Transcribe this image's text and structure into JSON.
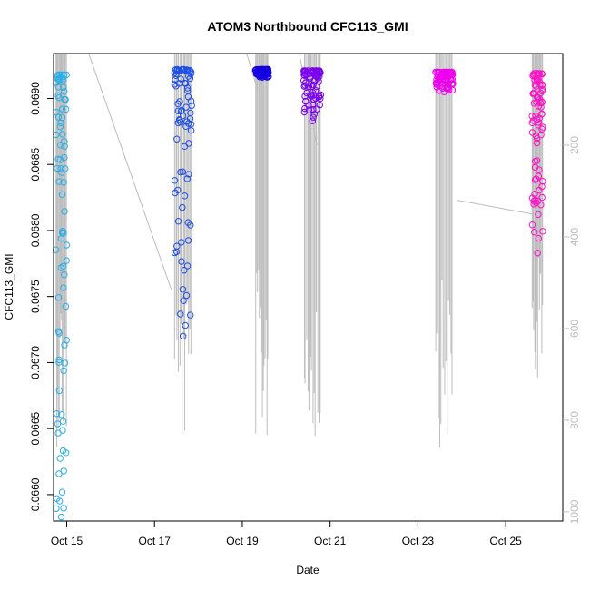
{
  "chart_data": {
    "type": "scatter",
    "title": "ATOM3 Northbound CFC113_GMI",
    "xlabel": "Date",
    "ylabel": "CFC113_GMI",
    "x_ticks": [
      "Oct 15",
      "Oct 17",
      "Oct 19",
      "Oct 21",
      "Oct 23",
      "Oct 25"
    ],
    "y_ticks": [
      "0.0660",
      "0.0665",
      "0.0670",
      "0.0675",
      "0.0680",
      "0.0685",
      "0.0690"
    ],
    "y2_ticks": [
      "200",
      "400",
      "600",
      "800",
      "1000"
    ],
    "xlim": [
      14.7,
      26.3
    ],
    "ylim": [
      0.0658,
      0.06934
    ],
    "y2lim": [
      0,
      1020
    ],
    "y2_reversed": true,
    "marker": "open-circle",
    "color_scale": [
      "#00bfff",
      "#1e3cff",
      "#1a00e6",
      "#8a00ff",
      "#ff00ff",
      "#ff1ab3"
    ],
    "pressure_line_color": "#bdbdbd",
    "clusters": [
      {
        "date": "Oct 15",
        "x_start": 14.75,
        "x_end": 15.0,
        "color": "#29aee8",
        "y_min": 0.06583,
        "y_max": 0.06918,
        "p_min": 200,
        "p_max": 860
      },
      {
        "date": "Oct 17",
        "x_start": 17.45,
        "x_end": 17.85,
        "color": "#1f4fe8",
        "y_min": 0.0672,
        "y_max": 0.06922,
        "p_min": 200,
        "p_max": 880
      },
      {
        "date": "Oct 19",
        "x_start": 19.3,
        "x_end": 19.6,
        "color": "#1500e0",
        "y_min": 0.06916,
        "y_max": 0.06922,
        "p_min": 160,
        "p_max": 850
      },
      {
        "date": "Oct 21",
        "x_start": 20.4,
        "x_end": 20.8,
        "color": "#7a00ee",
        "y_min": 0.06883,
        "y_max": 0.06921,
        "p_min": 150,
        "p_max": 860
      },
      {
        "date": "Oct 23",
        "x_start": 23.4,
        "x_end": 23.8,
        "color": "#ee00ee",
        "y_min": 0.06905,
        "y_max": 0.0692,
        "p_min": 190,
        "p_max": 860
      },
      {
        "date": "Oct 25",
        "x_start": 25.6,
        "x_end": 25.85,
        "color": "#ff10c8",
        "y_min": 0.06783,
        "y_max": 0.06919,
        "p_min": 200,
        "p_max": 740
      }
    ],
    "grid": false,
    "legend": "none"
  }
}
